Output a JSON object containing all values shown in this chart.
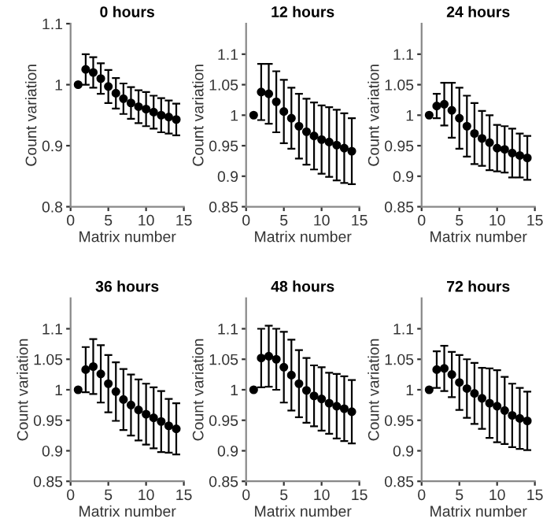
{
  "chart_data": [
    {
      "type": "scatter",
      "title": "0 hours",
      "xlabel": "Matrix number",
      "ylabel": "Count variation",
      "x": [
        1,
        2,
        3,
        4,
        5,
        6,
        7,
        8,
        9,
        10,
        11,
        12,
        13,
        14
      ],
      "xlim": [
        0,
        15
      ],
      "xticks": [
        0,
        5,
        10,
        15
      ],
      "ylim": [
        0.8,
        1.1
      ],
      "yticks": [
        0.8,
        0.9,
        1,
        1.1
      ],
      "marker": "circle",
      "grid": false,
      "series": [
        {
          "color": "#000000",
          "values": [
            1.0,
            1.025,
            1.02,
            1.01,
            0.997,
            0.986,
            0.977,
            0.97,
            0.964,
            0.96,
            0.955,
            0.95,
            0.947,
            0.943
          ],
          "errors": [
            null,
            0.025,
            0.025,
            0.025,
            0.027,
            0.025,
            0.025,
            0.026,
            0.027,
            0.028,
            0.027,
            0.028,
            0.027,
            0.026
          ]
        }
      ]
    },
    {
      "type": "scatter",
      "title": "12 hours",
      "xlabel": "Matrix number",
      "ylabel": "Count variation",
      "x": [
        1,
        2,
        3,
        4,
        5,
        6,
        7,
        8,
        9,
        10,
        11,
        12,
        13,
        14
      ],
      "xlim": [
        0,
        15
      ],
      "xticks": [
        0,
        5,
        10,
        15
      ],
      "ylim": [
        0.85,
        1.15
      ],
      "yticks": [
        0.85,
        0.9,
        0.95,
        1,
        1.05,
        1.1
      ],
      "marker": "circle",
      "grid": false,
      "series": [
        {
          "color": "#000000",
          "values": [
            1.0,
            1.038,
            1.035,
            1.022,
            1.006,
            0.995,
            0.982,
            0.973,
            0.966,
            0.96,
            0.956,
            0.951,
            0.946,
            0.941
          ],
          "errors": [
            null,
            0.046,
            0.049,
            0.05,
            0.052,
            0.05,
            0.053,
            0.054,
            0.055,
            0.056,
            0.057,
            0.058,
            0.057,
            0.054
          ]
        }
      ]
    },
    {
      "type": "scatter",
      "title": "24 hours",
      "xlabel": "Matrix number",
      "ylabel": "Count variation",
      "x": [
        1,
        2,
        3,
        4,
        5,
        6,
        7,
        8,
        9,
        10,
        11,
        12,
        13,
        14
      ],
      "xlim": [
        0,
        15
      ],
      "xticks": [
        0,
        5,
        10,
        15
      ],
      "ylim": [
        0.85,
        1.15
      ],
      "yticks": [
        0.85,
        0.9,
        0.95,
        1,
        1.05,
        1.1
      ],
      "marker": "circle",
      "grid": false,
      "series": [
        {
          "color": "#000000",
          "values": [
            1.0,
            1.015,
            1.018,
            1.008,
            0.995,
            0.982,
            0.97,
            0.962,
            0.955,
            0.946,
            0.944,
            0.938,
            0.934,
            0.93
          ],
          "errors": [
            null,
            0.02,
            0.035,
            0.045,
            0.05,
            0.05,
            0.05,
            0.045,
            0.045,
            0.038,
            0.038,
            0.04,
            0.036,
            0.036
          ]
        }
      ]
    },
    {
      "type": "scatter",
      "title": "36 hours",
      "xlabel": "Matrix number",
      "ylabel": "Count variation",
      "x": [
        1,
        2,
        3,
        4,
        5,
        6,
        7,
        8,
        9,
        10,
        11,
        12,
        13,
        14
      ],
      "xlim": [
        0,
        15
      ],
      "xticks": [
        0,
        5,
        10,
        15
      ],
      "ylim": [
        0.85,
        1.15
      ],
      "yticks": [
        0.85,
        0.9,
        0.95,
        1,
        1.05,
        1.1
      ],
      "marker": "circle",
      "grid": false,
      "series": [
        {
          "color": "#000000",
          "values": [
            1.0,
            1.033,
            1.038,
            1.026,
            1.01,
            0.997,
            0.984,
            0.975,
            0.967,
            0.96,
            0.954,
            0.948,
            0.941,
            0.936
          ],
          "errors": [
            null,
            0.037,
            0.045,
            0.047,
            0.047,
            0.048,
            0.05,
            0.05,
            0.05,
            0.05,
            0.05,
            0.05,
            0.044,
            0.042
          ]
        }
      ]
    },
    {
      "type": "scatter",
      "title": "48 hours",
      "xlabel": "Matrix number",
      "ylabel": "Count variation",
      "x": [
        1,
        2,
        3,
        4,
        5,
        6,
        7,
        8,
        9,
        10,
        11,
        12,
        13,
        14
      ],
      "xlim": [
        0,
        15
      ],
      "xticks": [
        0,
        5,
        10,
        15
      ],
      "ylim": [
        0.85,
        1.15
      ],
      "yticks": [
        0.85,
        0.9,
        0.95,
        1,
        1.05,
        1.1
      ],
      "marker": "circle",
      "grid": false,
      "series": [
        {
          "color": "#000000",
          "values": [
            1.0,
            1.052,
            1.055,
            1.05,
            1.037,
            1.024,
            1.01,
            0.999,
            0.99,
            0.985,
            0.978,
            0.973,
            0.969,
            0.964
          ],
          "errors": [
            null,
            0.048,
            0.05,
            0.05,
            0.058,
            0.058,
            0.055,
            0.053,
            0.05,
            0.052,
            0.05,
            0.053,
            0.053,
            0.052
          ]
        }
      ]
    },
    {
      "type": "scatter",
      "title": "72 hours",
      "xlabel": "Matrix number",
      "ylabel": "Count variation",
      "x": [
        1,
        2,
        3,
        4,
        5,
        6,
        7,
        8,
        9,
        10,
        11,
        12,
        13,
        14
      ],
      "xlim": [
        0,
        15
      ],
      "xticks": [
        0,
        5,
        10,
        15
      ],
      "ylim": [
        0.85,
        1.15
      ],
      "yticks": [
        0.85,
        0.9,
        0.95,
        1,
        1.05,
        1.1
      ],
      "marker": "circle",
      "grid": false,
      "series": [
        {
          "color": "#000000",
          "values": [
            1.0,
            1.033,
            1.035,
            1.025,
            1.012,
            1.002,
            0.994,
            0.986,
            0.978,
            0.973,
            0.966,
            0.958,
            0.953,
            0.949
          ],
          "errors": [
            null,
            0.03,
            0.037,
            0.037,
            0.045,
            0.048,
            0.05,
            0.05,
            0.057,
            0.059,
            0.055,
            0.052,
            0.05,
            0.048
          ]
        }
      ]
    }
  ]
}
